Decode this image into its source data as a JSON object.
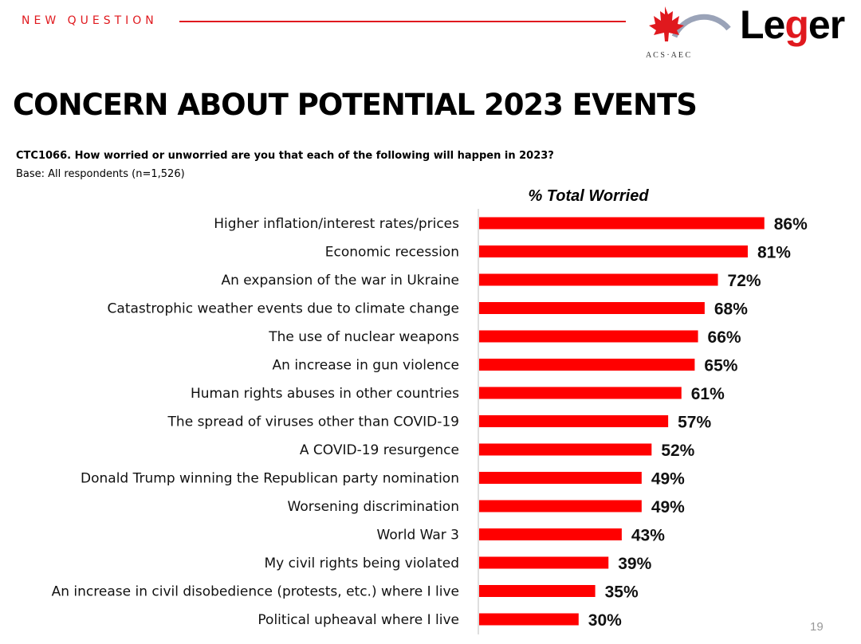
{
  "header": {
    "kicker": "NEW QUESTION",
    "partner_logo_text": "A C S · A E C",
    "brand_logo_text": "Leger"
  },
  "title": "CONCERN ABOUT POTENTIAL 2023 EVENTS",
  "question": "CTC1066. How worried or unworried are you that each of the following will happen in 2023?",
  "base": "Base: All respondents (n=1,526)",
  "page_number": "19",
  "colors": {
    "accent": "#e0191e",
    "bar": "#ff0000"
  },
  "chart_data": {
    "type": "bar",
    "orientation": "horizontal",
    "title": "% Total Worried",
    "xlabel": "",
    "ylabel": "",
    "xlim": [
      0,
      100
    ],
    "grid": false,
    "categories": [
      "Higher inflation/interest rates/prices",
      "Economic recession",
      "An expansion of the war in Ukraine",
      "Catastrophic weather events due to climate change",
      "The use of nuclear weapons",
      "An increase in gun violence",
      "Human rights abuses in other countries",
      "The spread of viruses other than COVID-19",
      "A COVID-19 resurgence",
      "Donald Trump winning the Republican party nomination",
      "Worsening discrimination",
      "World War 3",
      "My civil rights being violated",
      "An increase in civil disobedience (protests, etc.) where I live",
      "Political upheaval where I live"
    ],
    "values": [
      86,
      81,
      72,
      68,
      66,
      65,
      61,
      57,
      52,
      49,
      49,
      43,
      39,
      35,
      30
    ],
    "data_labels": [
      "86%",
      "81%",
      "72%",
      "68%",
      "66%",
      "65%",
      "61%",
      "57%",
      "52%",
      "49%",
      "49%",
      "43%",
      "39%",
      "35%",
      "30%"
    ]
  }
}
